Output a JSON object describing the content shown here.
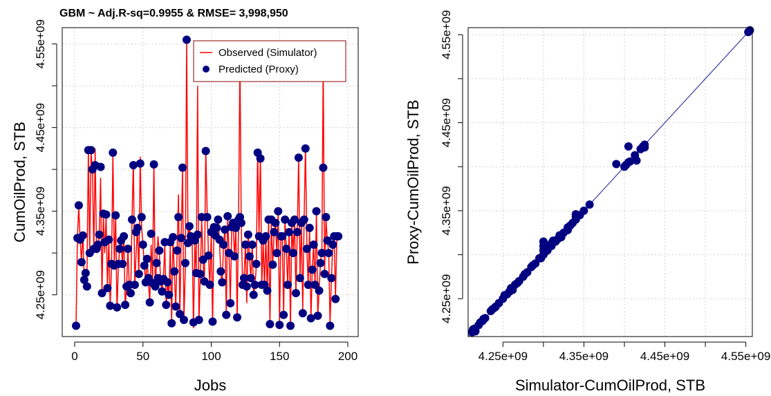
{
  "chart_data": [
    {
      "type": "line",
      "title": "GBM ~ Adj.R-sq=0.9955 & RMSE= 3,998,950",
      "xlabel": "Jobs",
      "ylabel": "CumOilProd, STB",
      "xlim": [
        0,
        200
      ],
      "ylim": [
        4210000000.0,
        4560000000.0
      ],
      "xticks": [
        0,
        50,
        100,
        150,
        200
      ],
      "xtick_labels": [
        "0",
        "50",
        "100",
        "150",
        "200"
      ],
      "yticks": [
        4250000000.0,
        4300000000.0,
        4350000000.0,
        4400000000.0,
        4450000000.0,
        4500000000.0,
        4550000000.0
      ],
      "ytick_labels": [
        "4.25e+09",
        "",
        "4.35e+09",
        "",
        "4.45e+09",
        "",
        "4.55e+09"
      ],
      "grid": true,
      "legend_position": "top-right",
      "series": [
        {
          "name": "Observed (Simulator)",
          "style": "line",
          "color": "#ff0000"
        },
        {
          "name": "Predicted (Proxy)",
          "style": "points",
          "color": "#000080"
        }
      ],
      "x": [
        1,
        2,
        3,
        4,
        5,
        6,
        7,
        8,
        9,
        10,
        11,
        12,
        13,
        14,
        15,
        16,
        17,
        18,
        19,
        20,
        21,
        22,
        23,
        24,
        25,
        26,
        27,
        28,
        29,
        30,
        31,
        32,
        33,
        34,
        35,
        36,
        37,
        38,
        39,
        40,
        41,
        42,
        43,
        44,
        45,
        46,
        47,
        48,
        49,
        50,
        51,
        52,
        53,
        54,
        55,
        56,
        57,
        58,
        59,
        60,
        61,
        62,
        63,
        64,
        65,
        66,
        67,
        68,
        69,
        70,
        71,
        72,
        73,
        74,
        75,
        76,
        77,
        78,
        79,
        80,
        81,
        82,
        83,
        84,
        85,
        86,
        87,
        88,
        89,
        90,
        91,
        92,
        93,
        94,
        95,
        96,
        97,
        98,
        99,
        100,
        101,
        102,
        103,
        104,
        105,
        106,
        107,
        108,
        109,
        110,
        111,
        112,
        113,
        114,
        115,
        116,
        117,
        118,
        119,
        120,
        121,
        122,
        123,
        124,
        125,
        126,
        127,
        128,
        129,
        130,
        131,
        132,
        133,
        134,
        135,
        136,
        137,
        138,
        139,
        140,
        141,
        142,
        143,
        144,
        145,
        146,
        147,
        148,
        149,
        150,
        151,
        152,
        153,
        154,
        155,
        156,
        157,
        158,
        159,
        160,
        161,
        162,
        163,
        164,
        165,
        166,
        167,
        168,
        169,
        170,
        171,
        172,
        173,
        174,
        175,
        176,
        177,
        178,
        179,
        180,
        181,
        182,
        183,
        184,
        185,
        186,
        187,
        188,
        189,
        190,
        191,
        192,
        193
      ],
      "observed": [
        4213000000.0,
        4320000000.0,
        4355000000.0,
        4315000000.0,
        4290000000.0,
        4325000000.0,
        4270000000.0,
        4260000000.0,
        4275000000.0,
        4425000000.0,
        4300000000.0,
        4420000000.0,
        4400000000.0,
        4300000000.0,
        4425000000.0,
        4300000000.0,
        4305000000.0,
        4320000000.0,
        4390000000.0,
        4250000000.0,
        4345000000.0,
        4300000000.0,
        4345000000.0,
        4260000000.0,
        4315000000.0,
        4235000000.0,
        4285000000.0,
        4420000000.0,
        4285000000.0,
        4345000000.0,
        4230000000.0,
        4285000000.0,
        4305000000.0,
        4315000000.0,
        4285000000.0,
        4320000000.0,
        4235000000.0,
        4260000000.0,
        4305000000.0,
        4260000000.0,
        4250000000.0,
        4340000000.0,
        4410000000.0,
        4260000000.0,
        4300000000.0,
        4330000000.0,
        4270000000.0,
        4415000000.0,
        4330000000.0,
        4310000000.0,
        4285000000.0,
        4265000000.0,
        4295000000.0,
        4265000000.0,
        4240000000.0,
        4310000000.0,
        4265000000.0,
        4410000000.0,
        4255000000.0,
        4290000000.0,
        4320000000.0,
        4300000000.0,
        4265000000.0,
        4255000000.0,
        4270000000.0,
        4310000000.0,
        4235000000.0,
        4265000000.0,
        4250000000.0,
        4310000000.0,
        4215000000.0,
        4320000000.0,
        4275000000.0,
        4235000000.0,
        4300000000.0,
        4370000000.0,
        4225000000.0,
        4320000000.0,
        4400000000.0,
        4220000000.0,
        4280000000.0,
        4555000000.0,
        4310000000.0,
        4330000000.0,
        4320000000.0,
        4315000000.0,
        4210000000.0,
        4310000000.0,
        4275000000.0,
        4500000000.0,
        4215000000.0,
        4275000000.0,
        4340000000.0,
        4290000000.0,
        4265000000.0,
        4425000000.0,
        4350000000.0,
        4295000000.0,
        4260000000.0,
        4325000000.0,
        4215000000.0,
        4330000000.0,
        4320000000.0,
        4330000000.0,
        4340000000.0,
        4315000000.0,
        4275000000.0,
        4265000000.0,
        4310000000.0,
        4330000000.0,
        4225000000.0,
        4345000000.0,
        4300000000.0,
        4240000000.0,
        4330000000.0,
        4335000000.0,
        4295000000.0,
        4330000000.0,
        4220000000.0,
        4340000000.0,
        4530000000.0,
        4335000000.0,
        4260000000.0,
        4270000000.0,
        4310000000.0,
        4240000000.0,
        4325000000.0,
        4295000000.0,
        4270000000.0,
        4310000000.0,
        4250000000.0,
        4260000000.0,
        4285000000.0,
        4425000000.0,
        4320000000.0,
        4420000000.0,
        4260000000.0,
        4315000000.0,
        4260000000.0,
        4320000000.0,
        4250000000.0,
        4340000000.0,
        4215000000.0,
        4340000000.0,
        4285000000.0,
        4325000000.0,
        4335000000.0,
        4300000000.0,
        4350000000.0,
        4215000000.0,
        4320000000.0,
        4320000000.0,
        4225000000.0,
        4340000000.0,
        4305000000.0,
        4260000000.0,
        4325000000.0,
        4210000000.0,
        4335000000.0,
        4300000000.0,
        4340000000.0,
        4250000000.0,
        4325000000.0,
        4415000000.0,
        4270000000.0,
        4335000000.0,
        4230000000.0,
        4340000000.0,
        4430000000.0,
        4305000000.0,
        4260000000.0,
        4330000000.0,
        4220000000.0,
        4280000000.0,
        4310000000.0,
        4260000000.0,
        4350000000.0,
        4225000000.0,
        4255000000.0,
        4290000000.0,
        4300000000.0,
        4525000000.0,
        4275000000.0,
        4340000000.0,
        4315000000.0,
        4300000000.0,
        4215000000.0,
        4270000000.0,
        4310000000.0,
        4320000000.0,
        4245000000.0,
        4320000000.0,
        4320000000.0
      ],
      "predicted": [
        4213000000.0,
        4318000000.0,
        4357000000.0,
        4316000000.0,
        4289000000.0,
        4321000000.0,
        4268000000.0,
        4276000000.0,
        4260000000.0,
        4423000000.0,
        4300000000.0,
        4423000000.0,
        4400000000.0,
        4305000000.0,
        4405000000.0,
        4305000000.0,
        4310000000.0,
        4322000000.0,
        4403000000.0,
        4252000000.0,
        4347000000.0,
        4313000000.0,
        4346000000.0,
        4258000000.0,
        4316000000.0,
        4237000000.0,
        4287000000.0,
        4420000000.0,
        4285000000.0,
        4345000000.0,
        4235000000.0,
        4287000000.0,
        4305000000.0,
        4315000000.0,
        4287000000.0,
        4320000000.0,
        4238000000.0,
        4260000000.0,
        4305000000.0,
        4262000000.0,
        4252000000.0,
        4340000000.0,
        4405000000.0,
        4262000000.0,
        4325000000.0,
        4330000000.0,
        4275000000.0,
        4407000000.0,
        4343000000.0,
        4310000000.0,
        4285000000.0,
        4265000000.0,
        4293000000.0,
        4270000000.0,
        4241000000.0,
        4323000000.0,
        4264000000.0,
        4406000000.0,
        4260000000.0,
        4288000000.0,
        4270000000.0,
        4303000000.0,
        4266000000.0,
        4254000000.0,
        4269000000.0,
        4313000000.0,
        4238000000.0,
        4265000000.0,
        4250000000.0,
        4313000000.0,
        4216000000.0,
        4319000000.0,
        4278000000.0,
        4236000000.0,
        4303000000.0,
        4343000000.0,
        4227000000.0,
        4318000000.0,
        4402000000.0,
        4220000000.0,
        4288000000.0,
        4555000000.0,
        4312000000.0,
        4332000000.0,
        4320000000.0,
        4318000000.0,
        4217000000.0,
        4315000000.0,
        4276000000.0,
        4322000000.0,
        4220000000.0,
        4275000000.0,
        4343000000.0,
        4292000000.0,
        4266000000.0,
        4422000000.0,
        4343000000.0,
        4297000000.0,
        4262000000.0,
        4325000000.0,
        4218000000.0,
        4331000000.0,
        4321000000.0,
        4330000000.0,
        4340000000.0,
        4316000000.0,
        4278000000.0,
        4265000000.0,
        4310000000.0,
        4328000000.0,
        4226000000.0,
        4344000000.0,
        4300000000.0,
        4240000000.0,
        4331000000.0,
        4336000000.0,
        4296000000.0,
        4330000000.0,
        4223000000.0,
        4340000000.0,
        4343000000.0,
        4336000000.0,
        4262000000.0,
        4270000000.0,
        4310000000.0,
        4260000000.0,
        4322000000.0,
        4296000000.0,
        4270000000.0,
        4310000000.0,
        4250000000.0,
        4262000000.0,
        4287000000.0,
        4420000000.0,
        4320000000.0,
        4413000000.0,
        4262000000.0,
        4315000000.0,
        4262000000.0,
        4320000000.0,
        4255000000.0,
        4340000000.0,
        4215000000.0,
        4340000000.0,
        4286000000.0,
        4325000000.0,
        4336000000.0,
        4300000000.0,
        4350000000.0,
        4214000000.0,
        4320000000.0,
        4320000000.0,
        4226000000.0,
        4340000000.0,
        4305000000.0,
        4262000000.0,
        4325000000.0,
        4213000000.0,
        4336000000.0,
        4300000000.0,
        4340000000.0,
        4252000000.0,
        4325000000.0,
        4414000000.0,
        4270000000.0,
        4336000000.0,
        4228000000.0,
        4340000000.0,
        4425000000.0,
        4305000000.0,
        4262000000.0,
        4330000000.0,
        4222000000.0,
        4280000000.0,
        4310000000.0,
        4262000000.0,
        4350000000.0,
        4225000000.0,
        4255000000.0,
        4288000000.0,
        4300000000.0,
        4402000000.0,
        4275000000.0,
        4343000000.0,
        4315000000.0,
        4300000000.0,
        4213000000.0,
        4270000000.0,
        4310000000.0,
        4320000000.0,
        4245000000.0,
        4320000000.0,
        4320000000.0
      ]
    },
    {
      "type": "scatter",
      "title": "",
      "xlabel": "Simulator-CumOilProd, STB",
      "ylabel": "Proxy-CumOilProd, STB",
      "xlim": [
        4207000000.0,
        4558000000.0
      ],
      "ylim": [
        4207000000.0,
        4558000000.0
      ],
      "xticks": [
        4250000000.0,
        4300000000.0,
        4350000000.0,
        4400000000.0,
        4450000000.0,
        4500000000.0,
        4550000000.0
      ],
      "xtick_labels": [
        "4.25e+09",
        "",
        "4.35e+09",
        "",
        "4.45e+09",
        "",
        "4.55e+09"
      ],
      "yticks": [
        4250000000.0,
        4300000000.0,
        4350000000.0,
        4400000000.0,
        4450000000.0,
        4500000000.0,
        4550000000.0
      ],
      "ytick_labels": [
        "4.25e+09",
        "",
        "4.35e+09",
        "",
        "4.45e+09",
        "",
        "4.55e+09"
      ],
      "grid": true,
      "reference_line": "y = x",
      "colors": {
        "points": "#000080",
        "line": "#3a3aa0"
      },
      "points": [
        [
          4212000000.0,
          4212000000.0
        ],
        [
          4213000000.0,
          4215000000.0
        ],
        [
          4215000000.0,
          4216000000.0
        ],
        [
          4216000000.0,
          4213000000.0
        ],
        [
          4220000000.0,
          4220000000.0
        ],
        [
          4222000000.0,
          4223000000.0
        ],
        [
          4225000000.0,
          4225000000.0
        ],
        [
          4226000000.0,
          4227000000.0
        ],
        [
          4228000000.0,
          4228000000.0
        ],
        [
          4235000000.0,
          4236000000.0
        ],
        [
          4237000000.0,
          4238000000.0
        ],
        [
          4240000000.0,
          4240000000.0
        ],
        [
          4241000000.0,
          4241000000.0
        ],
        [
          4245000000.0,
          4245000000.0
        ],
        [
          4250000000.0,
          4250000000.0
        ],
        [
          4252000000.0,
          4254000000.0
        ],
        [
          4255000000.0,
          4255000000.0
        ],
        [
          4258000000.0,
          4258000000.0
        ],
        [
          4260000000.0,
          4262000000.0
        ],
        [
          4262000000.0,
          4260000000.0
        ],
        [
          4265000000.0,
          4266000000.0
        ],
        [
          4268000000.0,
          4268000000.0
        ],
        [
          4270000000.0,
          4270000000.0
        ],
        [
          4275000000.0,
          4275000000.0
        ],
        [
          4277000000.0,
          4278000000.0
        ],
        [
          4280000000.0,
          4280000000.0
        ],
        [
          4285000000.0,
          4286000000.0
        ],
        [
          4287000000.0,
          4288000000.0
        ],
        [
          4290000000.0,
          4290000000.0
        ],
        [
          4295000000.0,
          4296000000.0
        ],
        [
          4297000000.0,
          4296000000.0
        ],
        [
          4300000000.0,
          4300000000.0
        ],
        [
          4300000000.0,
          4305000000.0
        ],
        [
          4300000000.0,
          4310000000.0
        ],
        [
          4300000000.0,
          4315000000.0
        ],
        [
          4302000000.0,
          4303000000.0
        ],
        [
          4305000000.0,
          4305000000.0
        ],
        [
          4308000000.0,
          4310000000.0
        ],
        [
          4310000000.0,
          4310000000.0
        ],
        [
          4310000000.0,
          4313000000.0
        ],
        [
          4312000000.0,
          4316000000.0
        ],
        [
          4315000000.0,
          4315000000.0
        ],
        [
          4318000000.0,
          4318000000.0
        ],
        [
          4320000000.0,
          4320000000.0
        ],
        [
          4320000000.0,
          4322000000.0
        ],
        [
          4322000000.0,
          4320000000.0
        ],
        [
          4325000000.0,
          4325000000.0
        ],
        [
          4330000000.0,
          4328000000.0
        ],
        [
          4330000000.0,
          4331000000.0
        ],
        [
          4333000000.0,
          4333000000.0
        ],
        [
          4336000000.0,
          4336000000.0
        ],
        [
          4340000000.0,
          4340000000.0
        ],
        [
          4340000000.0,
          4343000000.0
        ],
        [
          4340000000.0,
          4346000000.0
        ],
        [
          4345000000.0,
          4345000000.0
        ],
        [
          4350000000.0,
          4350000000.0
        ],
        [
          4357000000.0,
          4357000000.0
        ],
        [
          4390000000.0,
          4403000000.0
        ],
        [
          4400000000.0,
          4400000000.0
        ],
        [
          4402000000.0,
          4402000000.0
        ],
        [
          4405000000.0,
          4405000000.0
        ],
        [
          4407000000.0,
          4406000000.0
        ],
        [
          4405000000.0,
          4423000000.0
        ],
        [
          4413000000.0,
          4413000000.0
        ],
        [
          4415000000.0,
          4407000000.0
        ],
        [
          4420000000.0,
          4420000000.0
        ],
        [
          4423000000.0,
          4423000000.0
        ],
        [
          4425000000.0,
          4422000000.0
        ],
        [
          4425000000.0,
          4425000000.0
        ],
        [
          4553000000.0,
          4553000000.0
        ],
        [
          4555000000.0,
          4555000000.0
        ]
      ]
    }
  ]
}
